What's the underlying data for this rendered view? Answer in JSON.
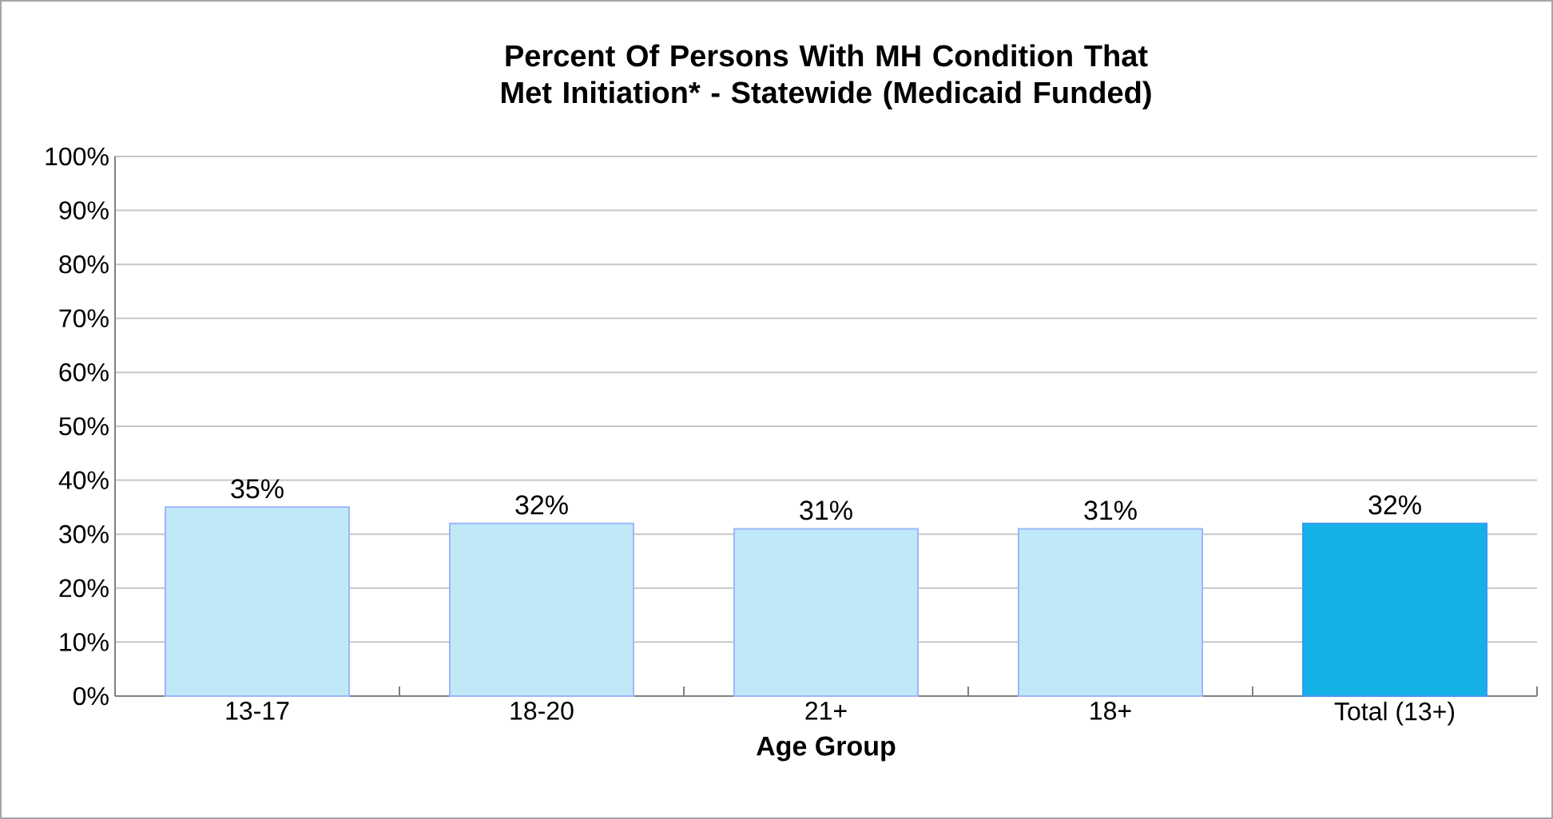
{
  "chart_data": {
    "type": "bar",
    "title": "Percent Of Persons With MH Condition That Met Initiation* - Statewide (Medicaid Funded)",
    "xlabel": "Age Group",
    "categories": [
      "13-17",
      "18-20",
      "21+",
      "18+",
      "Total (13+)"
    ],
    "values": [
      35,
      32,
      31,
      31,
      32
    ],
    "value_labels": [
      "35%",
      "32%",
      "31%",
      "31%",
      "32%"
    ],
    "colors": [
      "#c0e9f8",
      "#c0e9f8",
      "#c0e9f8",
      "#c0e9f8",
      "#14b1e7"
    ],
    "ylim": [
      0,
      100
    ],
    "yticks": [
      {
        "value": 0,
        "label": "0%"
      },
      {
        "value": 10,
        "label": "10%"
      },
      {
        "value": 20,
        "label": "20%"
      },
      {
        "value": 30,
        "label": "30%"
      },
      {
        "value": 40,
        "label": "40%"
      },
      {
        "value": 50,
        "label": "50%"
      },
      {
        "value": 60,
        "label": "60%"
      },
      {
        "value": 70,
        "label": "70%"
      },
      {
        "value": 80,
        "label": "80%"
      },
      {
        "value": 90,
        "label": "90%"
      },
      {
        "value": 100,
        "label": "100%"
      }
    ],
    "grid": "y"
  }
}
